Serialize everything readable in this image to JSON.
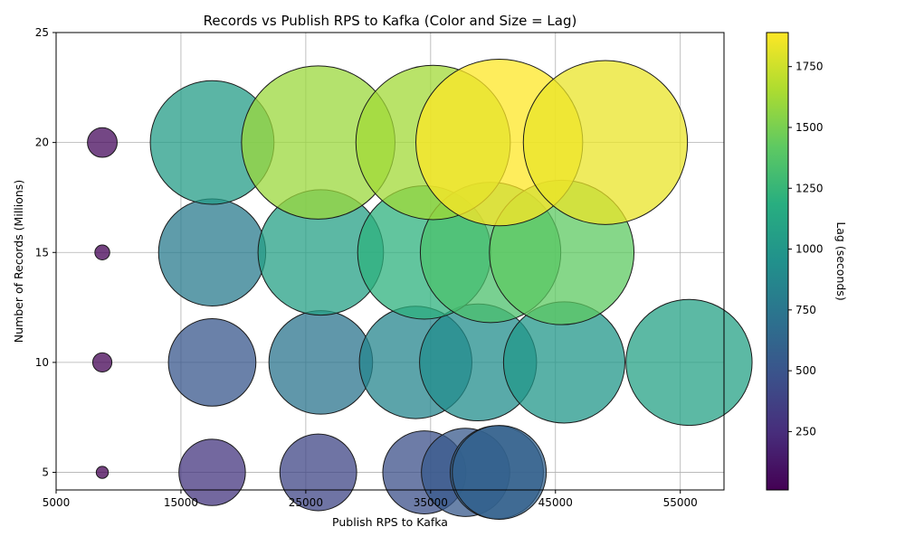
{
  "chart_data": {
    "type": "scatter",
    "title": "Records vs Publish RPS to Kafka (Color and Size = Lag)",
    "xlabel": "Publish RPS to Kafka",
    "ylabel": "Number of Records (Millions)",
    "colorbar_label": "Lag (seconds)",
    "xlim": [
      5000,
      58500
    ],
    "ylim": [
      4.2,
      25
    ],
    "xticks": [
      5000,
      15000,
      25000,
      35000,
      45000,
      55000
    ],
    "xtick_labels": [
      "5000",
      "15000",
      "25000",
      "35000",
      "45000",
      "55000"
    ],
    "yticks": [
      5,
      10,
      15,
      20,
      25
    ],
    "ytick_labels": [
      "5",
      "10",
      "15",
      "20",
      "25"
    ],
    "colorbar_range": [
      10,
      1890
    ],
    "colorbar_ticks": [
      250,
      500,
      750,
      1000,
      1250,
      1500,
      1750
    ],
    "colorbar_tick_labels": [
      "250",
      "500",
      "750",
      "1000",
      "1250",
      "1500",
      "1750"
    ],
    "colormap": "viridis",
    "grid": true,
    "points": [
      {
        "x": 8700,
        "y": 5,
        "lag": 10
      },
      {
        "x": 17500,
        "y": 5,
        "lag": 300
      },
      {
        "x": 26000,
        "y": 5,
        "lag": 400
      },
      {
        "x": 34500,
        "y": 5,
        "lag": 470
      },
      {
        "x": 37800,
        "y": 5,
        "lag": 530
      },
      {
        "x": 40300,
        "y": 5,
        "lag": 590
      },
      {
        "x": 40500,
        "y": 5,
        "lag": 600
      },
      {
        "x": 8700,
        "y": 10,
        "lag": 25
      },
      {
        "x": 17500,
        "y": 10,
        "lag": 520
      },
      {
        "x": 26200,
        "y": 10,
        "lag": 730
      },
      {
        "x": 33800,
        "y": 10,
        "lag": 860
      },
      {
        "x": 38800,
        "y": 10,
        "lag": 930
      },
      {
        "x": 45700,
        "y": 10,
        "lag": 1000
      },
      {
        "x": 55700,
        "y": 10,
        "lag": 1080
      },
      {
        "x": 8700,
        "y": 15,
        "lag": 15
      },
      {
        "x": 17500,
        "y": 15,
        "lag": 780
      },
      {
        "x": 26200,
        "y": 15,
        "lag": 1070
      },
      {
        "x": 34500,
        "y": 15,
        "lag": 1210
      },
      {
        "x": 39800,
        "y": 15,
        "lag": 1340
      },
      {
        "x": 45500,
        "y": 15,
        "lag": 1420
      },
      {
        "x": 8700,
        "y": 20,
        "lag": 60
      },
      {
        "x": 17500,
        "y": 20,
        "lag": 1040
      },
      {
        "x": 26000,
        "y": 20,
        "lag": 1600
      },
      {
        "x": 35200,
        "y": 20,
        "lag": 1620
      },
      {
        "x": 40500,
        "y": 20,
        "lag": 1890
      },
      {
        "x": 49000,
        "y": 20,
        "lag": 1830
      }
    ]
  }
}
